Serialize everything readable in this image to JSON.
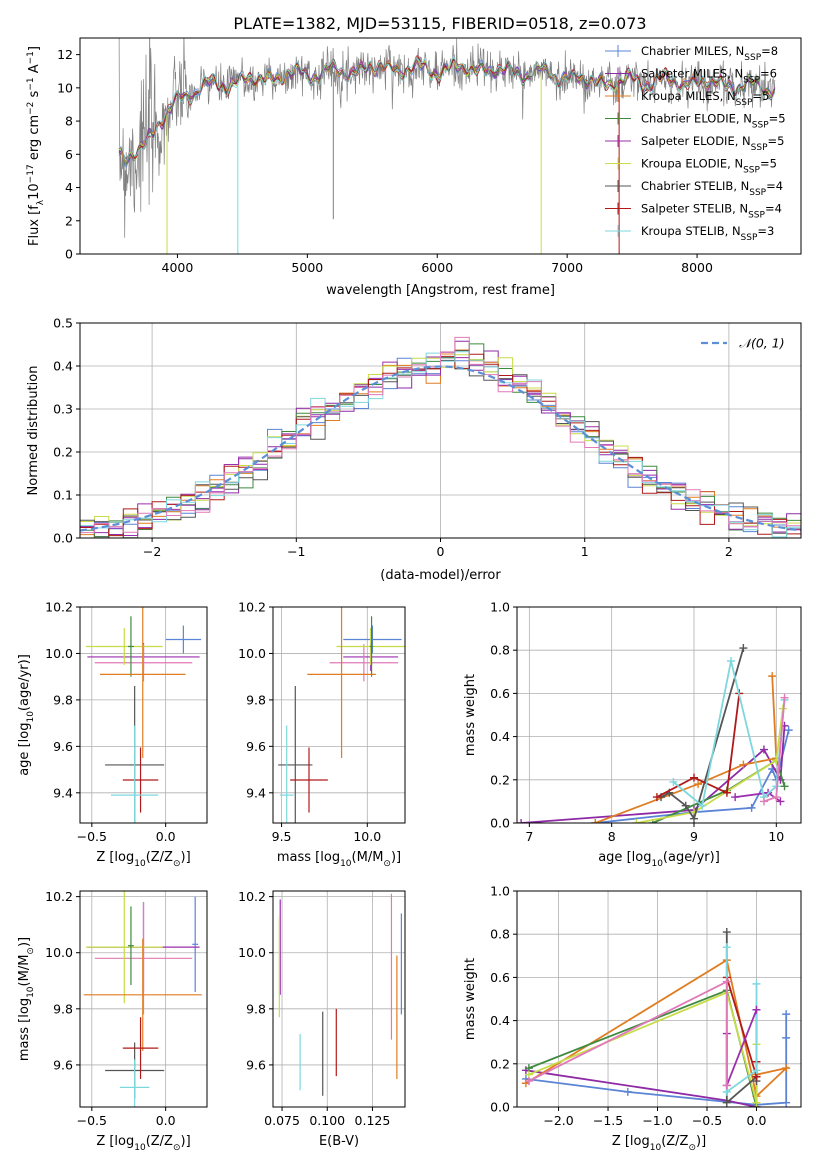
{
  "title": "PLATE=1382, MJD=53115, FIBERID=0518, z=0.073",
  "colors": {
    "Chabrier MILES": "#5b84d6",
    "Salpeter MILES": "#8e2aa6",
    "Kroupa MILES": "#e07d22",
    "Chabrier ELODIE": "#3f8a3f",
    "Salpeter ELODIE": "#9b2fae",
    "Kroupa ELODIE": "#c8dc48",
    "Chabrier STELIB": "#555555",
    "Salpeter STELIB": "#b01a1a",
    "Kroupa STELIB": "#7dd8dd",
    "pink": "#e07ab8",
    "gaussian": "#5b8fd6",
    "data": "#808080"
  },
  "chart_data": [
    {
      "id": "spectrum",
      "type": "line",
      "title": "PLATE=1382, MJD=53115, FIBERID=0518, z=0.073",
      "xlabel": "wavelength [Angstrom, rest frame]",
      "ylabel": "Flux [f",
      "ylabel_sub": "λ",
      "ylabel_rest": "10",
      "ylabel_exp": "−17",
      "ylabel_tail": " erg cm",
      "ylabel_exp2": "−2",
      "ylabel_tail2": " s",
      "ylabel_exp3": "−1",
      "ylabel_tail3": " A",
      "ylabel_exp4": "−1",
      "ylabel_end": "]",
      "xlim": [
        3250,
        8800
      ],
      "ylim": [
        0,
        13
      ],
      "xticks": [
        4000,
        5000,
        6000,
        7000,
        8000
      ],
      "yticks": [
        0,
        2,
        4,
        6,
        8,
        10,
        12
      ],
      "legend": [
        {
          "name": "Chabrier MILES",
          "n": "8"
        },
        {
          "name": "Salpeter MILES",
          "n": "6"
        },
        {
          "name": "Kroupa MILES",
          "n": "5"
        },
        {
          "name": "Chabrier ELODIE",
          "n": "5"
        },
        {
          "name": "Salpeter ELODIE",
          "n": "5"
        },
        {
          "name": "Kroupa ELODIE",
          "n": "5"
        },
        {
          "name": "Chabrier STELIB",
          "n": "4"
        },
        {
          "name": "Salpeter STELIB",
          "n": "4"
        },
        {
          "name": "Kroupa STELIB",
          "n": "3"
        }
      ],
      "legend_n_prefix": "N",
      "legend_n_sub": "SSP",
      "legend_placement": "upper right",
      "continuum": [
        [
          3550,
          5.8
        ],
        [
          3600,
          5.5
        ],
        [
          3700,
          6.4
        ],
        [
          3800,
          7.2
        ],
        [
          3900,
          8.2
        ],
        [
          4000,
          9.3
        ],
        [
          4100,
          9.8
        ],
        [
          4300,
          10.2
        ],
        [
          4500,
          10.4
        ],
        [
          4700,
          10.6
        ],
        [
          4900,
          10.8
        ],
        [
          5100,
          10.9
        ],
        [
          5300,
          11.0
        ],
        [
          5500,
          11.2
        ],
        [
          5700,
          11.2
        ],
        [
          5900,
          11.1
        ],
        [
          6100,
          11.1
        ],
        [
          6300,
          11.2
        ],
        [
          6500,
          11.0
        ],
        [
          6700,
          10.9
        ],
        [
          6900,
          10.8
        ],
        [
          7100,
          10.5
        ],
        [
          7300,
          10.3
        ],
        [
          7500,
          10.4
        ],
        [
          7800,
          10.4
        ],
        [
          8100,
          10.3
        ],
        [
          8400,
          10.1
        ],
        [
          8600,
          10.0
        ]
      ],
      "downward_spikes": [
        {
          "x": 3920,
          "y_low": 0.0,
          "series": "Kroupa ELODIE"
        },
        {
          "x": 4465,
          "y_low": 0.0,
          "series": "Kroupa STELIB"
        },
        {
          "x": 5200,
          "y_low": 2.1,
          "series": "Data"
        },
        {
          "x": 6800,
          "y_low": 0.0,
          "series": "Kroupa ELODIE"
        },
        {
          "x": 7400,
          "y_low": 0.0,
          "series": "Salpeter STELIB"
        }
      ]
    },
    {
      "id": "residuals",
      "type": "line",
      "xlabel": "(data-model)/error",
      "ylabel": "Normed distribution",
      "xlim": [
        -2.5,
        2.5
      ],
      "ylim": [
        0,
        0.5
      ],
      "xticks": [
        -2,
        -1,
        0,
        1,
        2
      ],
      "yticks": [
        0.0,
        0.1,
        0.2,
        0.3,
        0.4,
        0.5
      ],
      "grid": true,
      "legend": [
        {
          "name": "𝒩(0, 1)"
        }
      ],
      "legend_placement": "upper right",
      "gaussian": {
        "mean": 0,
        "sigma": 1
      },
      "bin_width": 0.1
    },
    {
      "id": "z-age",
      "type": "scatter",
      "xlabel": "Z [log",
      "xlabel_sub": "10",
      "xlabel_rest": "(Z/Z",
      "xlabel_sub2": "⊙",
      "xlabel_end": ")]",
      "ylabel": "age  [log",
      "ylabel_sub": "10",
      "ylabel_rest": "(age/yr)]",
      "xlim": [
        -0.58,
        0.28
      ],
      "ylim": [
        9.27,
        10.2
      ],
      "xticks": [
        -0.5,
        0.0
      ],
      "yticks": [
        9.4,
        9.6,
        9.8,
        10.0,
        10.2
      ],
      "grid": true,
      "points": [
        {
          "series": "Chabrier MILES",
          "x": 0.12,
          "xerr": 0.12,
          "y": 10.06,
          "yerr": 0.06
        },
        {
          "series": "Salpeter ELODIE",
          "x": -0.15,
          "xerr": 0.38,
          "y": 9.985,
          "yerr": 0.06
        },
        {
          "series": "pink",
          "x": -0.15,
          "xerr": 0.33,
          "y": 9.96,
          "yerr": 0.08
        },
        {
          "series": "Kroupa ELODIE",
          "x": -0.28,
          "xerr": 0.26,
          "y": 10.03,
          "yerr": 0.08
        },
        {
          "series": "Chabrier ELODIE",
          "x": -0.235,
          "xerr": 0.02,
          "y": 10.03,
          "yerr": 0.13
        },
        {
          "series": "Kroupa MILES",
          "x": -0.155,
          "xerr": 0.29,
          "y": 9.91,
          "yerr": 0.36
        },
        {
          "series": "Chabrier STELIB",
          "x": -0.21,
          "xerr": 0.2,
          "y": 9.52,
          "yerr": 0.34
        },
        {
          "series": "Salpeter STELIB",
          "x": -0.17,
          "xerr": 0.12,
          "y": 9.455,
          "yerr": 0.14
        },
        {
          "series": "Kroupa STELIB",
          "x": -0.21,
          "xerr": 0.16,
          "y": 9.39,
          "yerr": 0.3
        }
      ]
    },
    {
      "id": "mass-age",
      "type": "scatter",
      "xlabel": "mass [log",
      "xlabel_sub": "10",
      "xlabel_rest": "(M/M",
      "xlabel_sub2": "⊙",
      "xlabel_end": ")]",
      "xlim": [
        9.45,
        10.22
      ],
      "ylim": [
        9.27,
        10.2
      ],
      "xticks": [
        9.5,
        10.0
      ],
      "yticks": [
        9.4,
        9.6,
        9.8,
        10.0,
        10.2
      ],
      "grid": true,
      "points": [
        {
          "series": "Chabrier MILES",
          "x": 10.03,
          "xerr": 0.17,
          "y": 10.06,
          "yerr": 0.06
        },
        {
          "series": "Salpeter ELODIE",
          "x": 10.02,
          "xerr": 0.16,
          "y": 9.985,
          "yerr": 0.06
        },
        {
          "series": "pink",
          "x": 9.98,
          "xerr": 0.2,
          "y": 9.96,
          "yerr": 0.08
        },
        {
          "series": "Kroupa ELODIE",
          "x": 10.02,
          "xerr": 0.2,
          "y": 10.03,
          "yerr": 0.08
        },
        {
          "series": "Chabrier ELODIE",
          "x": 10.025,
          "xerr": 0.01,
          "y": 10.03,
          "yerr": 0.13
        },
        {
          "series": "Kroupa MILES",
          "x": 9.85,
          "xerr": 0.2,
          "y": 9.91,
          "yerr": 0.36
        },
        {
          "series": "Chabrier STELIB",
          "x": 9.58,
          "xerr": 0.1,
          "y": 9.52,
          "yerr": 0.34
        },
        {
          "series": "Salpeter STELIB",
          "x": 9.66,
          "xerr": 0.11,
          "y": 9.455,
          "yerr": 0.14
        },
        {
          "series": "Kroupa STELIB",
          "x": 9.53,
          "xerr": 0.04,
          "y": 9.39,
          "yerr": 0.3
        }
      ]
    },
    {
      "id": "age-weight",
      "type": "line",
      "xlabel": "age  [log",
      "xlabel_sub": "10",
      "xlabel_rest": "(age/yr)]",
      "ylabel": "mass weight",
      "xlim": [
        6.85,
        10.3
      ],
      "ylim": [
        0,
        1.0
      ],
      "xticks": [
        7,
        8,
        9,
        10
      ],
      "yticks": [
        0.0,
        0.2,
        0.4,
        0.6,
        0.8,
        1.0
      ],
      "grid": true,
      "series": [
        {
          "name": "Chabrier MILES",
          "x": [
            7.8,
            9.0,
            9.7,
            9.95,
            10.0,
            10.15
          ],
          "y": [
            0.0,
            0.05,
            0.07,
            0.25,
            0.2,
            0.43
          ]
        },
        {
          "name": "Salpeter MILES",
          "x": [
            6.9,
            9.0,
            9.85,
            10.05,
            10.1
          ],
          "y": [
            0.0,
            0.06,
            0.34,
            0.2,
            0.45
          ]
        },
        {
          "name": "Kroupa MILES",
          "x": [
            7.8,
            9.05,
            9.6,
            10.0,
            9.95
          ],
          "y": [
            0.0,
            0.18,
            0.27,
            0.3,
            0.68
          ]
        },
        {
          "name": "Chabrier ELODIE",
          "x": [
            8.5,
            9.4,
            10.0,
            10.1
          ],
          "y": [
            0.0,
            0.15,
            0.29,
            0.17
          ]
        },
        {
          "name": "Salpeter ELODIE",
          "x": [
            9.5,
            9.9,
            10.05
          ],
          "y": [
            0.12,
            0.14,
            0.1
          ]
        },
        {
          "name": "Kroupa ELODIE",
          "x": [
            8.3,
            9.0,
            10.0,
            10.08
          ],
          "y": [
            0.0,
            0.05,
            0.29,
            0.53
          ]
        },
        {
          "name": "Chabrier STELIB",
          "x": [
            8.6,
            8.7,
            8.9,
            9.0,
            9.6
          ],
          "y": [
            0.12,
            0.14,
            0.08,
            0.02,
            0.81
          ]
        },
        {
          "name": "Salpeter STELIB",
          "x": [
            8.55,
            9.0,
            9.4,
            9.55
          ],
          "y": [
            0.12,
            0.21,
            0.14,
            0.6
          ]
        },
        {
          "name": "Kroupa STELIB",
          "x": [
            8.75,
            9.1,
            9.45,
            9.85,
            10.0,
            10.1
          ],
          "y": [
            0.19,
            0.08,
            0.75,
            0.12,
            0.17,
            0.57
          ]
        },
        {
          "name": "pink",
          "x": [
            9.85,
            10.0,
            10.1
          ],
          "y": [
            0.1,
            0.12,
            0.58
          ]
        }
      ]
    },
    {
      "id": "z-mass",
      "type": "scatter",
      "xlabel": "Z [log",
      "xlabel_sub": "10",
      "xlabel_rest": "(Z/Z",
      "xlabel_sub2": "⊙",
      "xlabel_end": ")]",
      "ylabel": "mass [log",
      "ylabel_sub": "10",
      "ylabel_rest": "(M/M",
      "ylabel_sub2": "⊙",
      "ylabel_end": ")]",
      "xlim": [
        -0.58,
        0.28
      ],
      "ylim": [
        9.45,
        10.22
      ],
      "xticks": [
        -0.5,
        0.0
      ],
      "yticks": [
        9.6,
        9.8,
        10.0,
        10.2
      ],
      "grid": true,
      "points": [
        {
          "series": "Chabrier MILES",
          "x": 0.2,
          "xerr": 0.02,
          "y": 10.03,
          "yerr": 0.17
        },
        {
          "series": "Salpeter ELODIE",
          "x": -0.15,
          "xerr": 0.38,
          "y": 10.02,
          "yerr": 0.16
        },
        {
          "series": "pink",
          "x": -0.15,
          "xerr": 0.33,
          "y": 9.98,
          "yerr": 0.2
        },
        {
          "series": "Kroupa ELODIE",
          "x": -0.28,
          "xerr": 0.26,
          "y": 10.02,
          "yerr": 0.2
        },
        {
          "series": "Chabrier ELODIE",
          "x": -0.235,
          "xerr": 0.02,
          "y": 10.025,
          "yerr": 0.14
        },
        {
          "series": "Kroupa MILES",
          "x": -0.155,
          "xerr": 0.4,
          "y": 9.85,
          "yerr": 0.2
        },
        {
          "series": "Chabrier STELIB",
          "x": -0.21,
          "xerr": 0.2,
          "y": 9.58,
          "yerr": 0.1
        },
        {
          "series": "Salpeter STELIB",
          "x": -0.17,
          "xerr": 0.12,
          "y": 9.66,
          "yerr": 0.11
        },
        {
          "series": "Kroupa STELIB",
          "x": -0.21,
          "xerr": 0.1,
          "y": 9.52,
          "yerr": 0.1
        }
      ]
    },
    {
      "id": "ebv-mass",
      "type": "scatter",
      "xlabel": "E(B-V)",
      "xlim": [
        0.07,
        0.143
      ],
      "ylim": [
        9.45,
        10.22
      ],
      "xticks": [
        0.075,
        0.1,
        0.125
      ],
      "xticklabels": [
        "0.075",
        "0.100",
        "0.125"
      ],
      "yticks": [
        9.6,
        9.8,
        10.0,
        10.2
      ],
      "grid": true,
      "points": [
        {
          "series": "Chabrier MILES",
          "x": 0.141,
          "y": 9.96,
          "yerr": 0.18
        },
        {
          "series": "Kroupa MILES",
          "x": 0.1385,
          "y": 9.77,
          "yerr": 0.22
        },
        {
          "series": "pink",
          "x": 0.1355,
          "y": 9.95,
          "yerr": 0.26
        },
        {
          "series": "Salpeter STELIB",
          "x": 0.105,
          "y": 9.68,
          "yerr": 0.12
        },
        {
          "series": "Chabrier STELIB",
          "x": 0.0975,
          "y": 9.64,
          "yerr": 0.15
        },
        {
          "series": "Kroupa STELIB",
          "x": 0.085,
          "y": 9.61,
          "yerr": 0.1
        },
        {
          "series": "Salpeter ELODIE",
          "x": 0.074,
          "y": 10.02,
          "yerr": 0.17
        },
        {
          "series": "Kroupa ELODIE",
          "x": 0.0735,
          "y": 9.95,
          "yerr": 0.18
        }
      ]
    },
    {
      "id": "z-weight",
      "type": "line",
      "xlabel": "Z [log",
      "xlabel_sub": "10",
      "xlabel_rest": "(Z/Z",
      "xlabel_sub2": "⊙",
      "xlabel_end": ")]",
      "ylabel": "mass weight",
      "xlim": [
        -2.42,
        0.45
      ],
      "ylim": [
        0,
        1.0
      ],
      "xticks": [
        -2.0,
        -1.5,
        -1.0,
        -0.5,
        0.0
      ],
      "yticks": [
        0.0,
        0.2,
        0.4,
        0.6,
        0.8,
        1.0
      ],
      "grid": true,
      "series": [
        {
          "name": "Chabrier MILES",
          "x": [
            -2.33,
            -1.3,
            0.0,
            0.3,
            0.3,
            0.3
          ],
          "y": [
            0.13,
            0.07,
            0.01,
            0.02,
            0.32,
            0.43
          ]
        },
        {
          "name": "Salpeter MILES",
          "x": [
            -2.33,
            -0.3,
            0.0,
            0.0,
            0.0
          ],
          "y": [
            0.17,
            0.03,
            0.0,
            0.21,
            0.45
          ]
        },
        {
          "name": "Kroupa MILES",
          "x": [
            -2.33,
            -0.3,
            0.0,
            0.3,
            0.0
          ],
          "y": [
            0.11,
            0.68,
            0.05,
            0.18,
            0.15
          ]
        },
        {
          "name": "Chabrier ELODIE",
          "x": [
            -2.3,
            -0.3,
            0.0
          ],
          "y": [
            0.18,
            0.54,
            0.0
          ]
        },
        {
          "name": "Kroupa ELODIE",
          "x": [
            -2.3,
            -0.3,
            0.0,
            0.0
          ],
          "y": [
            0.15,
            0.53,
            0.02,
            0.29
          ]
        },
        {
          "name": "Chabrier STELIB",
          "x": [
            -0.3,
            -0.3,
            0.0,
            0.0
          ],
          "y": [
            0.81,
            0.02,
            0.14,
            0.12
          ]
        },
        {
          "name": "Salpeter STELIB",
          "x": [
            -0.3,
            0.0,
            0.0
          ],
          "y": [
            0.6,
            0.14,
            0.21
          ]
        },
        {
          "name": "Kroupa STELIB",
          "x": [
            -0.3,
            -0.3,
            0.0,
            0.0
          ],
          "y": [
            0.74,
            0.07,
            0.17,
            0.57
          ]
        },
        {
          "name": "Salpeter ELODIE",
          "x": [
            -0.3,
            -0.3,
            0.0
          ],
          "y": [
            0.34,
            0.1,
            0.45
          ]
        },
        {
          "name": "pink",
          "x": [
            -2.3,
            -0.3,
            -0.3
          ],
          "y": [
            0.12,
            0.58,
            0.1
          ]
        }
      ]
    }
  ]
}
